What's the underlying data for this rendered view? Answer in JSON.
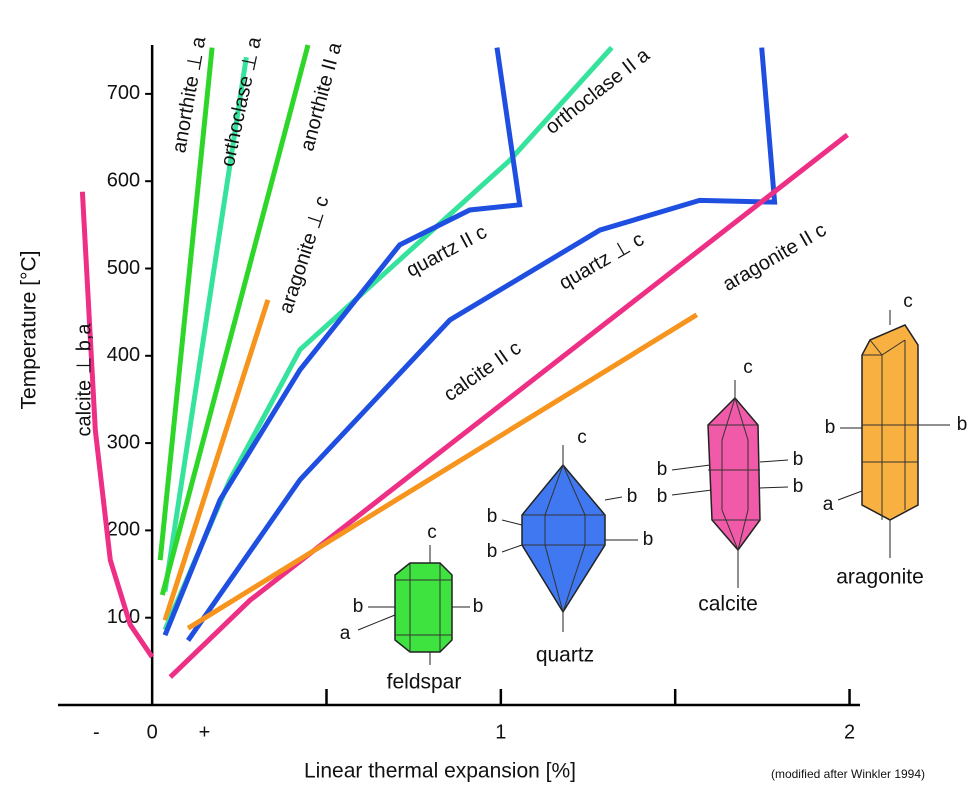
{
  "chart_data": {
    "type": "line",
    "x_label": "Linear thermal expansion [%]",
    "y_label": "Temperature [°C]",
    "note": "(modified after Winkler 1994)",
    "xlim": [
      -0.27,
      2.03
    ],
    "ylim": [
      0,
      756
    ],
    "xticks": [
      {
        "value": -0.16,
        "label": "-"
      },
      0,
      {
        "value": 0.15,
        "label": "+"
      },
      1,
      2
    ],
    "xtick_marks": [
      0.5,
      1,
      1.5,
      2
    ],
    "yticks": [
      100,
      200,
      300,
      400,
      500,
      600,
      700
    ],
    "series": [
      {
        "name": "calcite ⊥ b,a",
        "color": "#ee2f86",
        "x": [
          -0.2,
          -0.163,
          -0.12,
          -0.063,
          0
        ],
        "values": [
          588,
          315,
          166,
          92,
          55
        ]
      },
      {
        "name": "anorthite ⊥ a",
        "color": "#2fd62a",
        "x": [
          0.023,
          0.172
        ],
        "values": [
          166,
          753
        ]
      },
      {
        "name": "orthoclase ⊥ a",
        "color": "#35e39c",
        "x": [
          0.037,
          0.27
        ],
        "values": [
          130,
          742
        ]
      },
      {
        "name": "anorthite II a",
        "color": "#2fd62a",
        "x": [
          0.029,
          0.447
        ],
        "values": [
          126,
          756
        ]
      },
      {
        "name": "aragonite ⊥ c",
        "color": "#f7941d",
        "x": [
          0.037,
          0.332
        ],
        "values": [
          97,
          464
        ]
      },
      {
        "name": "orthoclase II a",
        "color": "#35e39c",
        "x": [
          0.037,
          0.223,
          0.424,
          0.71,
          1.026,
          1.318
        ],
        "values": [
          86,
          258,
          407,
          510,
          624,
          753
        ]
      },
      {
        "name": "quartz II c",
        "color": "#1f4fe0",
        "x": [
          0.037,
          0.195,
          0.424,
          0.71,
          0.911,
          1.054,
          0.989
        ],
        "values": [
          80,
          235,
          384,
          527,
          567,
          573,
          753
        ]
      },
      {
        "name": "quartz ⊥ c",
        "color": "#1f4fe0",
        "x": [
          0.103,
          0.424,
          0.854,
          1.284,
          1.57,
          1.785,
          1.748
        ],
        "values": [
          74,
          258,
          441,
          544,
          578,
          576,
          753
        ]
      },
      {
        "name": "calcite II c",
        "color": "#ee2f86",
        "x": [
          0.052,
          0.281,
          1.994
        ],
        "values": [
          32,
          120,
          653
        ]
      },
      {
        "name": "aragonite II c",
        "color": "#f7941d",
        "x": [
          0.103,
          1.562
        ],
        "values": [
          88,
          447
        ]
      }
    ]
  },
  "crystals": [
    {
      "name": "feldspar",
      "color": "#3fe33f",
      "axes": [
        "c",
        "b",
        "b",
        "a"
      ]
    },
    {
      "name": "quartz",
      "color": "#3f78f0",
      "axes": [
        "c",
        "b",
        "b",
        "b",
        "b"
      ]
    },
    {
      "name": "calcite",
      "color": "#f05aa8",
      "axes": [
        "c",
        "b",
        "b",
        "b",
        "b"
      ]
    },
    {
      "name": "aragonite",
      "color": "#f8b040",
      "axes": [
        "c",
        "b",
        "b",
        "a"
      ]
    }
  ]
}
